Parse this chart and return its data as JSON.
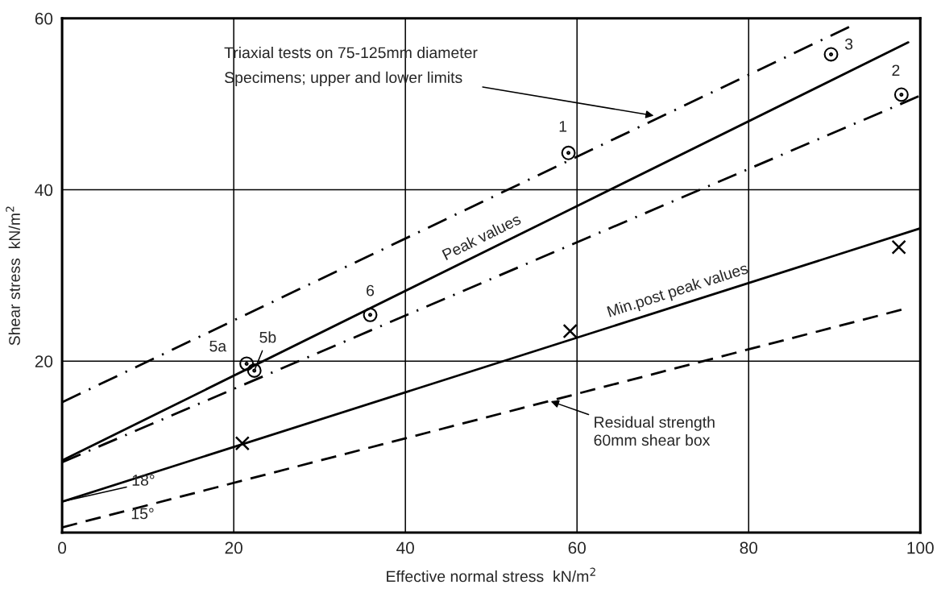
{
  "chart_data": {
    "type": "line",
    "xlabel": "Effective normal stress  kN/m$^{2}$",
    "ylabel": "Shear stress  kN/m$^{2}$",
    "xlim": [
      0,
      100
    ],
    "ylim": [
      0,
      60
    ],
    "xticks": [
      0,
      20,
      40,
      60,
      80,
      100
    ],
    "yticks": [
      {
        "value": 0,
        "label": null
      },
      20,
      40,
      60
    ],
    "grid": true,
    "series": [
      {
        "color": "#000000",
        "line_style": "dashdot",
        "x": [
          0,
          91.7
        ],
        "values": [
          15.2,
          59.0
        ]
      },
      {
        "name": "Peak values",
        "color": "#000000",
        "line_style": "solid",
        "x": [
          0,
          98.6
        ],
        "values": [
          8.4,
          57.2
        ]
      },
      {
        "color": "#000000",
        "line_style": "dashdot",
        "x": [
          0,
          99.8
        ],
        "values": [
          8.2,
          50.9
        ]
      },
      {
        "name": "Min.post peak values",
        "color": "#000000",
        "line_style": "solid",
        "x": [
          0,
          100
        ],
        "values": [
          3.6,
          35.5
        ]
      },
      {
        "color": "#000000",
        "line_style": "dashed",
        "x": [
          0,
          97.8
        ],
        "values": [
          0.6,
          26.0
        ]
      },
      {
        "type": "scatter",
        "color": "#000000",
        "marker": "circle",
        "x": [
          59.0,
          97.8,
          89.6,
          21.5,
          22.4,
          35.9
        ],
        "values": [
          44.3,
          51.1,
          55.8,
          19.7,
          18.9,
          25.4
        ]
      },
      {
        "type": "scatter",
        "color": "#000000",
        "marker": "cross",
        "x": [
          21.0,
          59.2,
          97.5
        ],
        "values": [
          10.4,
          23.5,
          33.3
        ]
      }
    ],
    "annotations": [
      {
        "text": "Triaxial tests on 75-125mm diameter\nSpecimens; upper and lower limits",
        "x": 69.2,
        "y": 48.6
      },
      {
        "text": "Residual strength\n60mm shear box",
        "x": 56.7,
        "y": 15.4
      },
      {
        "text": "18°",
        "x": 0,
        "y": 3.6
      },
      "15°",
      {
        "text": "1",
        "x": 59.0,
        "y": 44.3
      },
      {
        "text": "2",
        "x": 97.8,
        "y": 51.1
      },
      {
        "text": "3",
        "x": 89.6,
        "y": 55.8
      },
      {
        "text": "5a",
        "x": 21.5,
        "y": 19.7
      },
      {
        "text": "5b",
        "x": 22.4,
        "y": 18.9
      },
      {
        "text": "6",
        "x": 35.9,
        "y": 25.4
      }
    ]
  }
}
